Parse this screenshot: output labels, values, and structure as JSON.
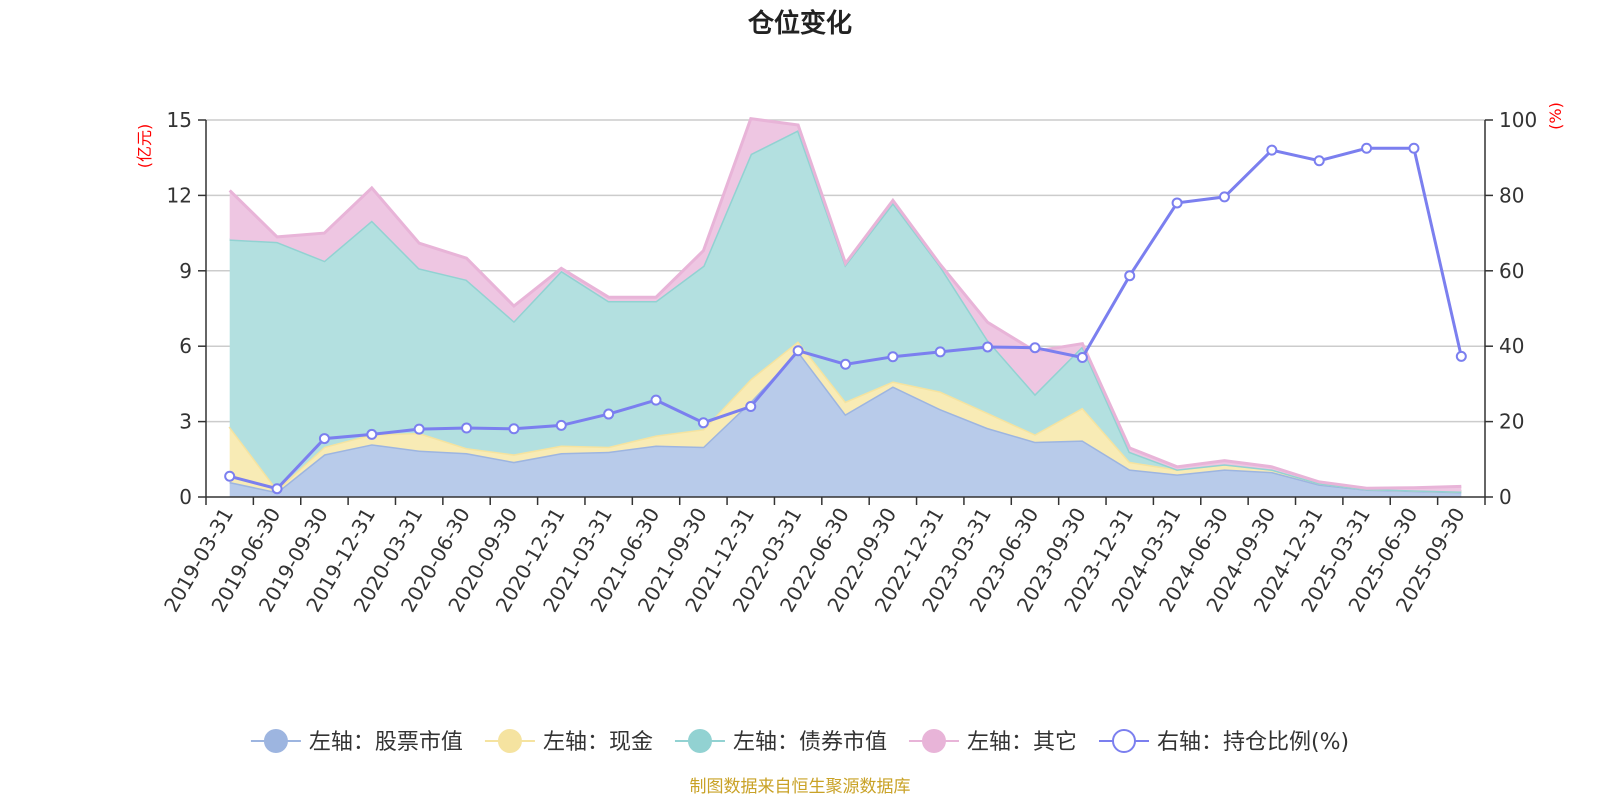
{
  "chart_data": {
    "type": "area",
    "title": "仓位变化",
    "left_axis": {
      "unit": "(亿元)",
      "min": 0,
      "max": 15,
      "ticks": [
        0,
        3,
        6,
        9,
        12,
        15
      ]
    },
    "right_axis": {
      "unit": "(%)",
      "min": 0,
      "max": 100,
      "ticks": [
        0,
        20,
        40,
        60,
        80,
        100
      ]
    },
    "categories": [
      "2019-03-31",
      "2019-06-30",
      "2019-09-30",
      "2019-12-31",
      "2020-03-31",
      "2020-06-30",
      "2020-09-30",
      "2020-12-31",
      "2021-03-31",
      "2021-06-30",
      "2021-09-30",
      "2021-12-31",
      "2022-03-31",
      "2022-06-30",
      "2022-09-30",
      "2022-12-31",
      "2023-03-31",
      "2023-06-30",
      "2023-09-30",
      "2023-12-31",
      "2024-03-31",
      "2024-06-30",
      "2024-09-30",
      "2024-12-31",
      "2025-03-31",
      "2025-06-30",
      "2025-09-30"
    ],
    "stacked_series": [
      {
        "name": "左轴：股票市值",
        "color": "#9db5e0",
        "fill": "#b8cbea",
        "values": [
          0.6,
          0.2,
          1.7,
          2.1,
          1.85,
          1.75,
          1.4,
          1.75,
          1.8,
          2.05,
          2.0,
          3.8,
          5.8,
          3.3,
          4.4,
          3.5,
          2.75,
          2.2,
          2.25,
          1.1,
          0.9,
          1.1,
          1.0,
          0.5,
          0.3,
          0.25,
          0.2
        ]
      },
      {
        "name": "左轴：现金",
        "color": "#f5e3a0",
        "fill": "#f8ebb5",
        "values": [
          2.2,
          0.1,
          0.3,
          0.4,
          0.7,
          0.2,
          0.3,
          0.3,
          0.2,
          0.4,
          0.7,
          0.9,
          0.4,
          0.5,
          0.2,
          0.7,
          0.6,
          0.3,
          1.3,
          0.3,
          0.2,
          0.2,
          0.1,
          0.05,
          0.02,
          0.02,
          0.02
        ]
      },
      {
        "name": "左轴：债券市值",
        "color": "#92d2d2",
        "fill": "#b3e0e0",
        "values": [
          7.45,
          9.85,
          7.4,
          8.5,
          6.55,
          6.7,
          5.3,
          6.95,
          5.8,
          5.35,
          6.5,
          8.95,
          8.4,
          5.45,
          7.1,
          5.0,
          2.9,
          1.6,
          2.45,
          0.4,
          0.0,
          0.0,
          0.0,
          0.0,
          0.0,
          0.0,
          0.0
        ]
      },
      {
        "name": "左轴：其它",
        "color": "#e8b4d8",
        "fill": "#eec6e2",
        "values": [
          1.95,
          0.2,
          1.1,
          1.3,
          1.0,
          0.85,
          0.6,
          0.1,
          0.15,
          0.15,
          0.6,
          1.4,
          0.2,
          0.05,
          0.1,
          0.05,
          0.7,
          1.7,
          0.1,
          0.15,
          0.1,
          0.15,
          0.1,
          0.05,
          0.03,
          0.1,
          0.2
        ]
      }
    ],
    "line_series": {
      "name": "右轴：持仓比例(%)",
      "color": "#7b7fef",
      "values": [
        5.5,
        2.2,
        15.5,
        16.6,
        18.0,
        18.3,
        18.1,
        19.0,
        22.0,
        25.7,
        19.7,
        24.0,
        38.8,
        35.2,
        37.2,
        38.5,
        39.8,
        39.6,
        37.0,
        58.7,
        78.0,
        79.6,
        92.0,
        89.2,
        92.5,
        92.5,
        37.3
      ]
    },
    "legend": [
      {
        "name": "左轴：股票市值",
        "color": "#9db5e0",
        "kind": "area"
      },
      {
        "name": "左轴：现金",
        "color": "#f5e3a0",
        "kind": "area"
      },
      {
        "name": "左轴：债券市值",
        "color": "#92d2d2",
        "kind": "area"
      },
      {
        "name": "左轴：其它",
        "color": "#e8b4d8",
        "kind": "area"
      },
      {
        "name": "右轴：持仓比例(%)",
        "color": "#7b7fef",
        "kind": "line"
      }
    ],
    "legend_position": "bottom-center",
    "grid": true
  },
  "footer": {
    "source": "制图数据来自恒生聚源数据库"
  }
}
